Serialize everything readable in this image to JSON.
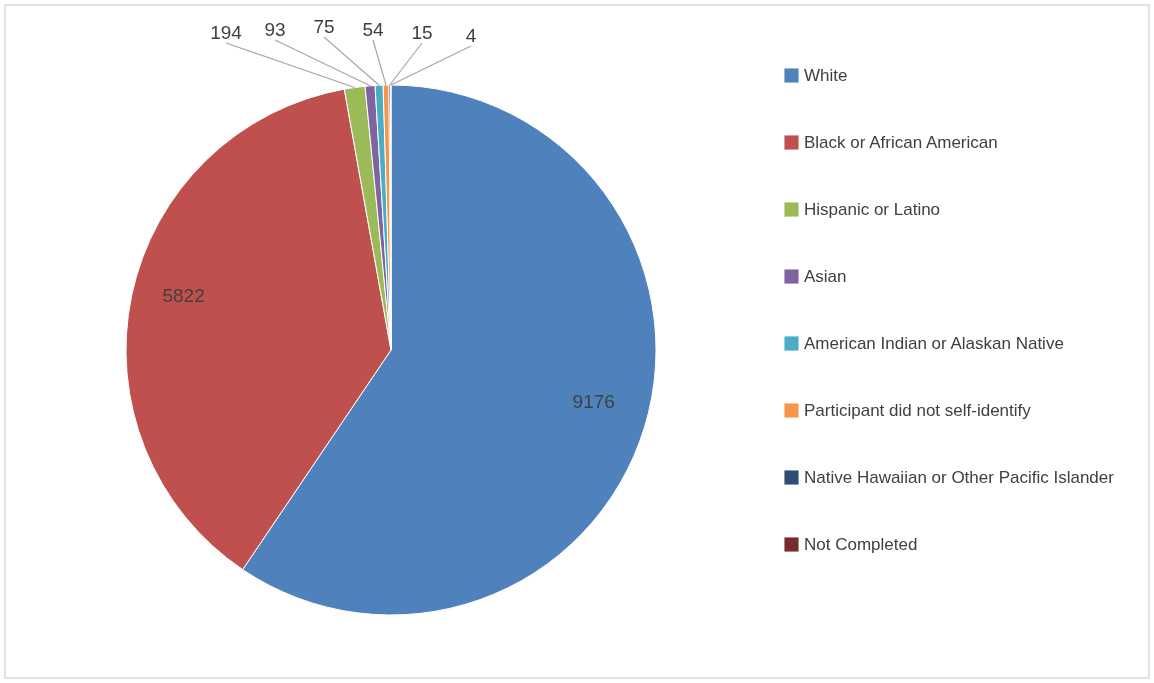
{
  "chart_data": {
    "type": "pie",
    "categories": [
      "White",
      "Black or African American",
      "Hispanic or Latino",
      "Asian",
      "American Indian or Alaskan Native",
      "Participant did not self-identify",
      "Native Hawaiian or Other Pacific Islander",
      "Not Completed"
    ],
    "values": [
      9176,
      5822,
      194,
      93,
      75,
      54,
      15,
      4
    ],
    "colors": [
      "#4f81bd",
      "#c0504d",
      "#9bbb59",
      "#8064a2",
      "#4bacc6",
      "#f79646",
      "#2c4d75",
      "#772c2a"
    ],
    "data_labels": true,
    "legend": "right"
  }
}
